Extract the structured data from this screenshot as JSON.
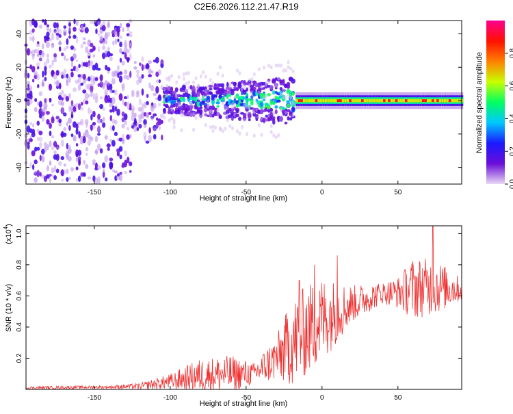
{
  "title": "C2E6.2026.112.21.47.R19",
  "chart_data": [
    {
      "type": "heatmap",
      "title": "C2E6.2026.112.21.47.R19",
      "xlabel": "Height of straight line (km)",
      "ylabel": "Frequency (Hz)",
      "xlim": [
        -195,
        92
      ],
      "ylim": [
        -50,
        48
      ],
      "xticks": [
        -150,
        -100,
        -50,
        0,
        50
      ],
      "yticks": [
        -40,
        -20,
        0,
        20,
        40
      ],
      "colorbar": {
        "label": "Normalized spectral amplitude",
        "range": [
          0,
          1
        ],
        "ticks": [
          0.0,
          0.2,
          0.4,
          0.6,
          0.8
        ],
        "tick_labels": [
          "0.0",
          "0.2",
          "0.4",
          "0.6",
          "0.8"
        ],
        "colors": [
          "#e8d8f4",
          "#6a0dd8",
          "#1a1aff",
          "#00c8ff",
          "#00ff60",
          "#c8ff00",
          "#ff8000",
          "#ff1000",
          "#ff0090"
        ]
      },
      "regions": [
        {
          "x_range": [
            -195,
            -125
          ],
          "freq_spread": 48,
          "amplitude": 0.1,
          "description": "broad scatter"
        },
        {
          "x_range": [
            -125,
            -105
          ],
          "freq_spread": 25,
          "amplitude": 0.1
        },
        {
          "x_range": [
            -105,
            -18
          ],
          "freq_spread": 10,
          "amplitude": 0.3
        },
        {
          "x_range": [
            -18,
            92
          ],
          "freq_spread": 2,
          "amplitude": 0.9,
          "description": "narrow band at 0 Hz"
        }
      ]
    },
    {
      "type": "line",
      "xlabel": "Height of straight line (km)",
      "ylabel": "SNR (10 * v/v)",
      "y_scale_label": "(x10",
      "y_scale_exp": "4",
      "xlim": [
        -195,
        92
      ],
      "ylim": [
        0,
        1.05
      ],
      "xticks": [
        -150,
        -100,
        -50,
        0,
        50
      ],
      "yticks": [
        0.2,
        0.4,
        0.6,
        0.8,
        1.0
      ],
      "ytick_labels": [
        "0.2",
        "0.4",
        "0.6",
        "0.8",
        "1.0"
      ],
      "color": "#f03030",
      "envelope": [
        {
          "x": -195,
          "mean": 0.01,
          "amp": 0.01
        },
        {
          "x": -140,
          "mean": 0.015,
          "amp": 0.01
        },
        {
          "x": -120,
          "mean": 0.02,
          "amp": 0.02
        },
        {
          "x": -100,
          "mean": 0.05,
          "amp": 0.05
        },
        {
          "x": -80,
          "mean": 0.09,
          "amp": 0.11
        },
        {
          "x": -60,
          "mean": 0.1,
          "amp": 0.12
        },
        {
          "x": -45,
          "mean": 0.1,
          "amp": 0.07
        },
        {
          "x": -30,
          "mean": 0.2,
          "amp": 0.15
        },
        {
          "x": -20,
          "mean": 0.3,
          "amp": 0.28
        },
        {
          "x": -10,
          "mean": 0.38,
          "amp": 0.3
        },
        {
          "x": 0,
          "mean": 0.45,
          "amp": 0.28
        },
        {
          "x": 10,
          "mean": 0.5,
          "amp": 0.2
        },
        {
          "x": 20,
          "mean": 0.55,
          "amp": 0.12
        },
        {
          "x": 40,
          "mean": 0.62,
          "amp": 0.07
        },
        {
          "x": 50,
          "mean": 0.62,
          "amp": 0.1
        },
        {
          "x": 60,
          "mean": 0.65,
          "amp": 0.2
        },
        {
          "x": 75,
          "mean": 0.66,
          "amp": 0.18
        },
        {
          "x": 92,
          "mean": 0.64,
          "amp": 0.07
        }
      ],
      "spikes": [
        {
          "x": 10,
          "y": 0.86
        },
        {
          "x": 73,
          "y": 1.05
        },
        {
          "x": -15,
          "y": 0.7
        },
        {
          "x": -5,
          "y": 0.8
        }
      ]
    }
  ]
}
